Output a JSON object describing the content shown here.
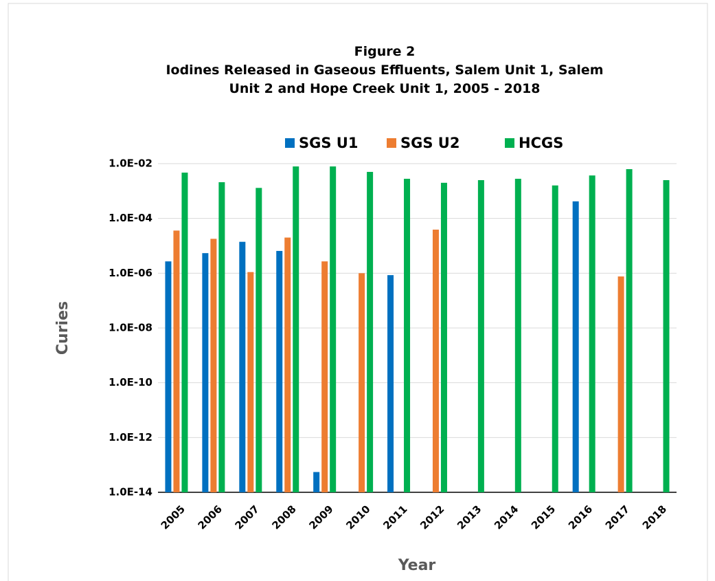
{
  "chart_data": {
    "type": "bar",
    "title": "Figure 2",
    "subtitle": "Iodines Released in Gaseous Effluents, Salem Unit 1, Salem Unit 2 and Hope Creek Unit 1, 2005 - 2018",
    "x_label": "Year",
    "y_label": "Curies",
    "categories": [
      "2005",
      "2006",
      "2007",
      "2008",
      "2009",
      "2010",
      "2011",
      "2012",
      "2013",
      "2014",
      "2015",
      "2016",
      "2017",
      "2018"
    ],
    "series": [
      {
        "name": "SGS U1",
        "color": "#0070c0",
        "values": [
          2.7e-06,
          5.4e-06,
          1.4e-05,
          6.5e-06,
          5.5e-14,
          null,
          8.5e-07,
          null,
          null,
          null,
          null,
          0.00042,
          null,
          null
        ]
      },
      {
        "name": "SGS U2",
        "color": "#ed7d31",
        "values": [
          3.6e-05,
          1.8e-05,
          1.1e-06,
          2e-05,
          2.7e-06,
          1e-06,
          null,
          3.9e-05,
          null,
          null,
          null,
          null,
          7.6e-07,
          null
        ]
      },
      {
        "name": "HCGS",
        "color": "#00b050",
        "values": [
          0.0047,
          0.0021,
          0.0013,
          0.0079,
          0.0079,
          0.005,
          0.0028,
          0.002,
          0.0025,
          0.0028,
          0.0016,
          0.0037,
          0.0063,
          0.0025
        ]
      }
    ],
    "log_scale": true,
    "grid": true,
    "legend": "top",
    "ylim": [
      1e-14,
      0.01
    ],
    "yticks": [
      {
        "value": 1e-14,
        "label": "1.0E-14"
      },
      {
        "value": 1e-12,
        "label": "1.0E-12"
      },
      {
        "value": 1e-10,
        "label": "1.0E-10"
      },
      {
        "value": 1e-08,
        "label": "1.0E-08"
      },
      {
        "value": 1e-06,
        "label": "1.0E-06"
      },
      {
        "value": 0.0001,
        "label": "1.0E-04"
      },
      {
        "value": 0.01,
        "label": "1.0E-02"
      }
    ]
  }
}
